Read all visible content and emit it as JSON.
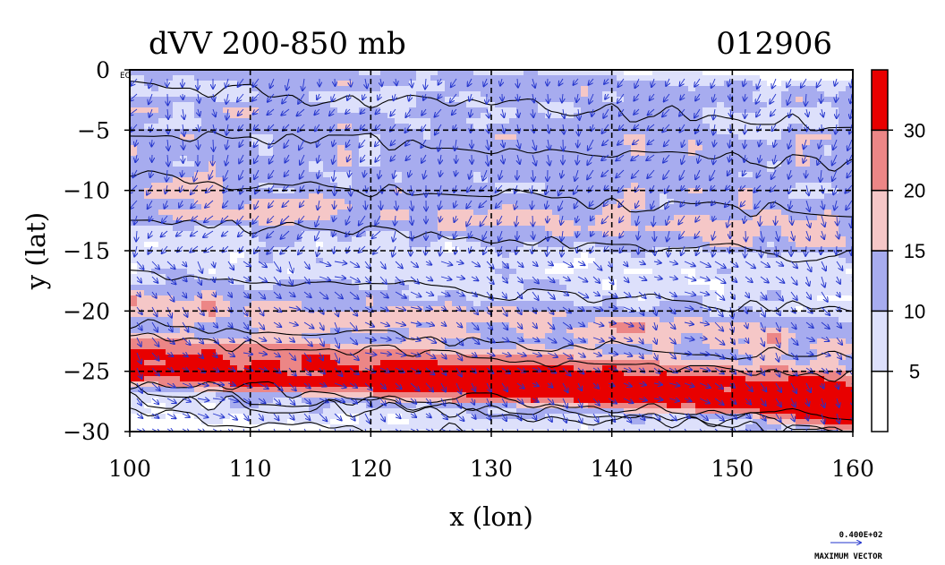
{
  "chart_data": {
    "type": "heatmap",
    "title": "dVV 200-850 mb",
    "date_label": "012906",
    "xlabel": "x (lon)",
    "ylabel": "y (lat)",
    "xlim": [
      100,
      160
    ],
    "ylim": [
      -30,
      0
    ],
    "x_ticks": [
      100,
      110,
      120,
      130,
      140,
      150,
      160
    ],
    "y_ticks": [
      0,
      -5,
      -10,
      -15,
      -20,
      -25,
      -30
    ],
    "y_tick_labels": [
      "0",
      "−5",
      "−10",
      "−15",
      "−20",
      "−25",
      "−30"
    ],
    "corner_label": "EQ",
    "grid": true,
    "colorbar": {
      "levels": [
        5,
        10,
        15,
        20,
        30
      ],
      "tick_labels": [
        "5",
        "10",
        "15",
        "20",
        "30"
      ],
      "colors": [
        "#ffffff",
        "#dde0fb",
        "#a7acef",
        "#f5c7c7",
        "#ec8686",
        "#e80000"
      ]
    },
    "field_bands": [
      {
        "lat_center": 0.5,
        "lat_halfwidth": 1.5,
        "value": 11
      },
      {
        "lat_center": -3.5,
        "lat_halfwidth": 2.8,
        "value": 12
      },
      {
        "lat_center": -7.5,
        "lat_halfwidth": 2.5,
        "value": 9
      },
      {
        "lat_center": -11.0,
        "lat_halfwidth": 2.2,
        "value": 14
      },
      {
        "lat_center": -15.5,
        "lat_halfwidth": 2.5,
        "value": 7
      },
      {
        "lat_center": -19.5,
        "lat_halfwidth": 2.0,
        "value": 17
      },
      {
        "lat_center": -23.5,
        "lat_halfwidth": 1.8,
        "value": 31
      },
      {
        "lat_center": -25.3,
        "lat_halfwidth": 0.9,
        "value": 22
      },
      {
        "lat_center": -27.5,
        "lat_halfwidth": 1.8,
        "value": 7
      }
    ],
    "jet_core": {
      "lon_start": 100,
      "lon_end": 160,
      "lat_start": -23.0,
      "lat_end": -29.0,
      "max_value": 38
    },
    "vector_legend": {
      "value_label": "0.400E+02",
      "caption": "MAXIMUM VECTOR"
    }
  }
}
